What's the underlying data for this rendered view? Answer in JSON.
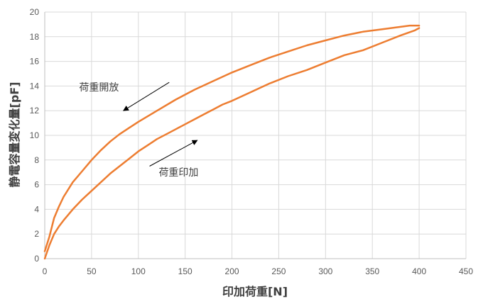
{
  "chart_data": {
    "type": "line",
    "xlabel": "印加荷重[N]",
    "ylabel": "静電容量変化量[pF]",
    "xlim": [
      0,
      450
    ],
    "ylim": [
      0,
      20
    ],
    "x_ticks": [
      0,
      50,
      100,
      150,
      200,
      250,
      300,
      350,
      400,
      450
    ],
    "y_ticks": [
      0,
      2,
      4,
      6,
      8,
      10,
      12,
      14,
      16,
      18,
      20
    ],
    "grid": true,
    "series": [
      {
        "color": "#ED7D31",
        "x": [
          0,
          5,
          10,
          15,
          20,
          30,
          40,
          50,
          60,
          70,
          80,
          90,
          100,
          110,
          120,
          130,
          140,
          150,
          160,
          170,
          180,
          190,
          200,
          220,
          240,
          260,
          280,
          300,
          320,
          340,
          360,
          380,
          395,
          400
        ],
        "y": [
          0,
          1.1,
          2.0,
          2.6,
          3.1,
          4.0,
          4.8,
          5.5,
          6.2,
          6.9,
          7.5,
          8.1,
          8.7,
          9.2,
          9.7,
          10.1,
          10.5,
          10.9,
          11.3,
          11.7,
          12.1,
          12.5,
          12.8,
          13.5,
          14.2,
          14.8,
          15.3,
          15.9,
          16.5,
          16.9,
          17.5,
          18.1,
          18.5,
          18.7
        ]
      },
      {
        "color": "#ED7D31",
        "x": [
          400,
          390,
          380,
          360,
          340,
          320,
          300,
          280,
          260,
          240,
          220,
          200,
          180,
          160,
          140,
          120,
          100,
          90,
          80,
          70,
          60,
          50,
          40,
          30,
          20,
          15,
          10,
          5,
          0
        ],
        "y": [
          18.9,
          18.9,
          18.8,
          18.6,
          18.4,
          18.1,
          17.7,
          17.3,
          16.8,
          16.3,
          15.7,
          15.1,
          14.4,
          13.7,
          12.9,
          12.0,
          11.1,
          10.6,
          10.1,
          9.5,
          8.8,
          8.0,
          7.1,
          6.2,
          5.0,
          4.2,
          3.3,
          1.8,
          0.6
        ]
      }
    ],
    "annotations": [
      {
        "text": "荷重開放",
        "x": 58,
        "y": 13.9
      },
      {
        "text": "荷重印加",
        "x": 143,
        "y": 7.0
      }
    ],
    "arrows": [
      {
        "from": [
          133,
          14.3
        ],
        "to": [
          84,
          12.0
        ]
      },
      {
        "from": [
          112,
          7.5
        ],
        "to": [
          163,
          9.6
        ]
      }
    ]
  }
}
